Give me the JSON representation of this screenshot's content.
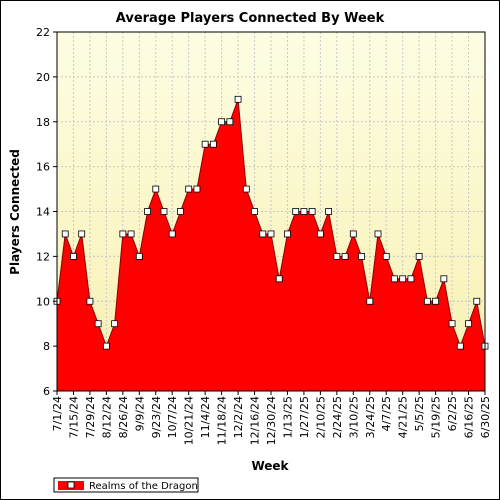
{
  "chart_data": {
    "type": "area",
    "title": "Average Players Connected By Week",
    "xlabel": "Week",
    "ylabel": "Players Connected",
    "ylim": [
      6,
      22
    ],
    "yticks": [
      6,
      8,
      10,
      12,
      14,
      16,
      18,
      20,
      22
    ],
    "grid": true,
    "legend_position": "bottom-left",
    "x_tick_labels": [
      "7/1/24",
      "7/15/24",
      "7/29/24",
      "8/12/24",
      "8/26/24",
      "9/9/24",
      "9/23/24",
      "10/7/24",
      "10/21/24",
      "11/4/24",
      "11/18/24",
      "12/2/24",
      "12/16/24",
      "12/30/24",
      "1/13/25",
      "1/27/25",
      "2/10/25",
      "2/24/25",
      "3/10/25",
      "3/24/25",
      "4/7/25",
      "4/21/25",
      "5/5/25",
      "5/19/25",
      "6/2/25",
      "6/16/25",
      "6/30/25"
    ],
    "series": [
      {
        "name": "Realms of the Dragon",
        "color": "#ff0000",
        "x": [
          "7/1/24",
          "7/8/24",
          "7/15/24",
          "7/22/24",
          "7/29/24",
          "8/5/24",
          "8/12/24",
          "8/19/24",
          "8/26/24",
          "9/2/24",
          "9/9/24",
          "9/16/24",
          "9/23/24",
          "9/30/24",
          "10/7/24",
          "10/14/24",
          "10/21/24",
          "10/28/24",
          "11/4/24",
          "11/11/24",
          "11/18/24",
          "11/25/24",
          "12/2/24",
          "12/9/24",
          "12/16/24",
          "12/23/24",
          "12/30/24",
          "1/6/25",
          "1/13/25",
          "1/20/25",
          "1/27/25",
          "2/3/25",
          "2/10/25",
          "2/17/25",
          "2/24/25",
          "3/3/25",
          "3/10/25",
          "3/17/25",
          "3/24/25",
          "3/31/25",
          "4/7/25",
          "4/14/25",
          "4/21/25",
          "4/28/25",
          "5/5/25",
          "5/12/25",
          "5/19/25",
          "5/26/25",
          "6/2/25",
          "6/9/25",
          "6/16/25",
          "6/23/25",
          "6/30/25"
        ],
        "values": [
          10,
          13,
          12,
          13,
          10,
          9,
          8,
          9,
          13,
          13,
          12,
          14,
          15,
          14,
          13,
          14,
          15,
          15,
          17,
          17,
          18,
          18,
          19,
          15,
          14,
          13,
          13,
          11,
          13,
          14,
          14,
          14,
          13,
          14,
          12,
          12,
          13,
          12,
          10,
          13,
          12,
          11,
          11,
          11,
          12,
          10,
          10,
          11,
          9,
          8,
          9,
          10,
          8
        ]
      }
    ]
  },
  "colors": {
    "plot_bg_top": "#fdfde3",
    "plot_bg_bottom": "#f7f0b0",
    "grid": "#c8c8c8",
    "fill": "#ff0000",
    "outline": "#8b0000",
    "marker_fill": "#ffffff"
  }
}
